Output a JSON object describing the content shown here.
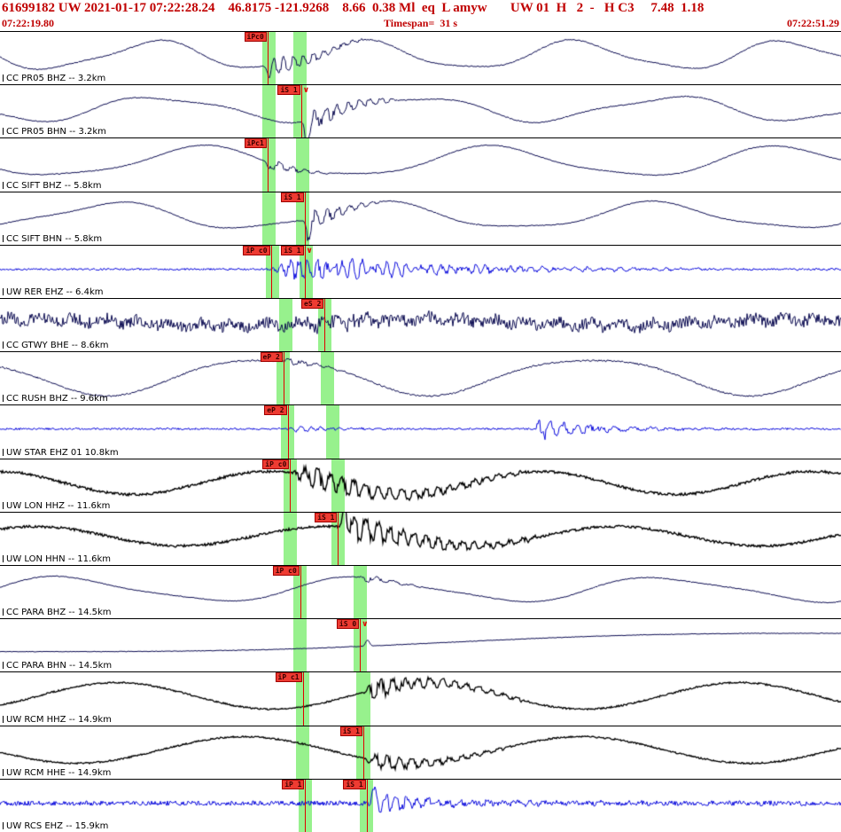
{
  "header": {
    "line1": "61699182 UW 2021-01-17 07:22:28.24    46.8175 -121.9268    8.66  0.38 Ml  eq  L amyw       UW 01  H   2  -   H C3     7.48  1.18",
    "start_time": "07:22:19.80",
    "timespan": "Timespan=  31 s",
    "end_time": "07:22:51.29",
    "text_color": "#c00000",
    "pick_band_color": "#7dee70",
    "pick_flag_color": "#ee3b32"
  },
  "traces": [
    {
      "label": "CC PR05 BHZ -- 3.2km",
      "color": "#0a0a50",
      "lw": 1,
      "seed": 11,
      "sines": [
        {
          "f": 4.0,
          "a": 15
        },
        {
          "f": 8.5,
          "a": 3
        }
      ],
      "noise": 0.6,
      "bursts": [
        {
          "s": 0.318,
          "e": 0.43,
          "a": 12,
          "f": 85
        }
      ],
      "spikes": [
        {
          "x": 0.32,
          "a": -12
        }
      ],
      "ramp": 0,
      "bands": [
        {
          "x": 0.312,
          "w": 0.016
        },
        {
          "x": 0.349,
          "w": 0.016
        }
      ],
      "picks": [
        {
          "label": "iPc0",
          "x": 0.318
        }
      ]
    },
    {
      "label": "CC PR05 BHN -- 3.2km",
      "color": "#0a0a50",
      "lw": 1,
      "seed": 22,
      "sines": [
        {
          "f": 3.3,
          "a": 13
        },
        {
          "f": 7.2,
          "a": 3
        }
      ],
      "noise": 0.6,
      "bursts": [
        {
          "s": 0.358,
          "e": 0.47,
          "a": 15,
          "f": 75
        }
      ],
      "spikes": [
        {
          "x": 0.364,
          "a": -26
        }
      ],
      "ramp": 0,
      "bands": [
        {
          "x": 0.312,
          "w": 0.016
        },
        {
          "x": 0.349,
          "w": 0.016
        }
      ],
      "picks": [
        {
          "label": "iS 1",
          "x": 0.358,
          "dir": "down"
        }
      ]
    },
    {
      "label": "CC SIFT BHZ -- 5.8km",
      "color": "#0a0a50",
      "lw": 1,
      "seed": 33,
      "sines": [
        {
          "f": 2.9,
          "a": 16
        },
        {
          "f": 6.1,
          "a": 3
        }
      ],
      "noise": 0.5,
      "bursts": [
        {
          "s": 0.318,
          "e": 0.39,
          "a": 7,
          "f": 65
        }
      ],
      "spikes": [
        {
          "x": 0.32,
          "a": -8
        }
      ],
      "ramp": 0,
      "bands": [
        {
          "x": 0.312,
          "w": 0.016
        },
        {
          "x": 0.352,
          "w": 0.016
        }
      ],
      "picks": [
        {
          "label": "iPc1",
          "x": 0.318
        }
      ]
    },
    {
      "label": "CC SIFT BHN -- 5.8km",
      "color": "#0a0a50",
      "lw": 1,
      "seed": 44,
      "sines": [
        {
          "f": 3.1,
          "a": 14
        },
        {
          "f": 6.6,
          "a": 3
        }
      ],
      "noise": 0.5,
      "bursts": [
        {
          "s": 0.362,
          "e": 0.45,
          "a": 13,
          "f": 75
        }
      ],
      "spikes": [
        {
          "x": 0.366,
          "a": -20
        }
      ],
      "ramp": 0,
      "bands": [
        {
          "x": 0.312,
          "w": 0.016
        },
        {
          "x": 0.352,
          "w": 0.016
        }
      ],
      "picks": [
        {
          "label": "iS 1",
          "x": 0.362
        }
      ]
    },
    {
      "label": "UW RER EHZ -- 6.4km",
      "color": "#0a0adc",
      "lw": 1,
      "seed": 55,
      "sines": [],
      "noise": 1.1,
      "bursts": [
        {
          "s": 0.322,
          "e": 0.62,
          "a": 13,
          "f": 95
        },
        {
          "s": 0.362,
          "e": 0.8,
          "a": 7,
          "f": 75
        },
        {
          "s": 0.62,
          "e": 1.0,
          "a": 1.8,
          "f": 55
        }
      ],
      "spikes": [],
      "ramp": 0,
      "bands": [
        {
          "x": 0.316,
          "w": 0.016
        },
        {
          "x": 0.356,
          "w": 0.016
        }
      ],
      "picks": [
        {
          "label": "iP c0",
          "x": 0.322
        },
        {
          "label": "iS 1",
          "x": 0.362,
          "dir": "down"
        }
      ]
    },
    {
      "label": "CC GTWY BHE -- 8.6km",
      "color": "#0a0a50",
      "lw": 1,
      "seed": 66,
      "sines": [
        {
          "f": 2.2,
          "a": 3.5
        },
        {
          "f": 26,
          "a": 3
        }
      ],
      "noise": 6.5,
      "bursts": [
        {
          "s": 0.36,
          "e": 0.55,
          "a": 6,
          "f": 55
        }
      ],
      "spikes": [],
      "ramp": 0,
      "bands": [
        {
          "x": 0.332,
          "w": 0.016
        },
        {
          "x": 0.378,
          "w": 0.016
        }
      ],
      "picks": [
        {
          "label": "eS 2",
          "x": 0.386
        }
      ]
    },
    {
      "label": "CC RUSH BHZ -- 9.6km",
      "color": "#0a0a50",
      "lw": 1,
      "seed": 77,
      "sines": [
        {
          "f": 2.6,
          "a": 20
        },
        {
          "f": 5.3,
          "a": 3
        }
      ],
      "noise": 0.9,
      "bursts": [
        {
          "s": 0.337,
          "e": 0.41,
          "a": 5,
          "f": 60
        }
      ],
      "spikes": [],
      "ramp": 0,
      "bands": [
        {
          "x": 0.329,
          "w": 0.016
        },
        {
          "x": 0.381,
          "w": 0.016
        }
      ],
      "picks": [
        {
          "label": "eP 2",
          "x": 0.337
        }
      ]
    },
    {
      "label": "UW STAR EHZ 01 10.8km",
      "color": "#0a0adc",
      "lw": 1,
      "seed": 88,
      "sines": [],
      "noise": 1.1,
      "bursts": [
        {
          "s": 0.342,
          "e": 0.44,
          "a": 4,
          "f": 85
        },
        {
          "s": 0.635,
          "e": 0.73,
          "a": 15,
          "f": 65
        },
        {
          "s": 0.7,
          "e": 0.9,
          "a": 3.5,
          "f": 45
        }
      ],
      "spikes": [],
      "ramp": 0,
      "bands": [
        {
          "x": 0.334,
          "w": 0.016
        },
        {
          "x": 0.388,
          "w": 0.016
        }
      ],
      "picks": [
        {
          "label": "eP 2",
          "x": 0.342
        }
      ]
    },
    {
      "label": "UW LON HHZ -- 11.6km",
      "color": "#000000",
      "lw": 1.4,
      "seed": 99,
      "sines": [
        {
          "f": 3.1,
          "a": 13
        }
      ],
      "noise": 1.4,
      "bursts": [
        {
          "s": 0.345,
          "e": 0.62,
          "a": 15,
          "f": 70
        }
      ],
      "spikes": [],
      "ramp": 0,
      "bands": [
        {
          "x": 0.337,
          "w": 0.016
        },
        {
          "x": 0.394,
          "w": 0.016
        }
      ],
      "picks": [
        {
          "label": "iP c0",
          "x": 0.345
        }
      ]
    },
    {
      "label": "UW LON HHN -- 11.6km",
      "color": "#000000",
      "lw": 1.4,
      "seed": 110,
      "sines": [
        {
          "f": 2.9,
          "a": 11
        }
      ],
      "noise": 1.4,
      "bursts": [
        {
          "s": 0.402,
          "e": 0.64,
          "a": 16,
          "f": 70
        }
      ],
      "spikes": [
        {
          "x": 0.41,
          "a": 24
        }
      ],
      "ramp": 0,
      "bands": [
        {
          "x": 0.337,
          "w": 0.016
        },
        {
          "x": 0.394,
          "w": 0.016
        }
      ],
      "picks": [
        {
          "label": "iS 1",
          "x": 0.402
        }
      ]
    },
    {
      "label": "CC PARA BHZ -- 14.5km",
      "color": "#0a0a50",
      "lw": 1,
      "seed": 121,
      "sines": [
        {
          "f": 2.8,
          "a": 13
        },
        {
          "f": 5.8,
          "a": 2.5
        }
      ],
      "noise": 0.5,
      "bursts": [
        {
          "s": 0.428,
          "e": 0.5,
          "a": 6,
          "f": 48
        }
      ],
      "spikes": [],
      "ramp": 0,
      "bands": [
        {
          "x": 0.349,
          "w": 0.016
        },
        {
          "x": 0.42,
          "w": 0.016
        }
      ],
      "picks": [
        {
          "label": "iP c0",
          "x": 0.357
        }
      ]
    },
    {
      "label": "CC PARA BHN -- 14.5km",
      "color": "#0a0a50",
      "lw": 1,
      "seed": 132,
      "sines": [
        {
          "f": 1.2,
          "a": 1.5
        }
      ],
      "noise": 0.35,
      "bursts": [],
      "spikes": [
        {
          "x": 0.437,
          "a": 7
        }
      ],
      "ramp": 13,
      "bands": [
        {
          "x": 0.349,
          "w": 0.016
        },
        {
          "x": 0.42,
          "w": 0.016
        }
      ],
      "picks": [
        {
          "label": "iS 0",
          "x": 0.428,
          "dir": "down"
        }
      ]
    },
    {
      "label": "UW RCM HHZ -- 14.9km",
      "color": "#000000",
      "lw": 1.3,
      "seed": 143,
      "sines": [
        {
          "f": 2.7,
          "a": 15
        }
      ],
      "noise": 0.9,
      "bursts": [
        {
          "s": 0.43,
          "e": 0.62,
          "a": 13,
          "f": 68
        }
      ],
      "spikes": [],
      "ramp": 0,
      "bands": [
        {
          "x": 0.352,
          "w": 0.016
        },
        {
          "x": 0.424,
          "w": 0.016
        }
      ],
      "picks": [
        {
          "label": "iP c1",
          "x": 0.36
        }
      ]
    },
    {
      "label": "UW RCM HHE -- 14.9km",
      "color": "#000000",
      "lw": 1.3,
      "seed": 154,
      "sines": [
        {
          "f": 2.5,
          "a": 15
        }
      ],
      "noise": 0.9,
      "bursts": [
        {
          "s": 0.433,
          "e": 0.6,
          "a": 11,
          "f": 68
        }
      ],
      "spikes": [],
      "ramp": 0,
      "bands": [
        {
          "x": 0.352,
          "w": 0.016
        },
        {
          "x": 0.424,
          "w": 0.016
        }
      ],
      "picks": [
        {
          "label": "iS 1",
          "x": 0.432
        }
      ]
    },
    {
      "label": "UW RCS EHZ -- 15.9km",
      "color": "#0a0adc",
      "lw": 1,
      "seed": 165,
      "sines": [],
      "noise": 2.6,
      "bursts": [
        {
          "s": 0.436,
          "e": 0.56,
          "a": 12,
          "f": 80
        },
        {
          "s": 0.5,
          "e": 1.0,
          "a": 2.5,
          "f": 60
        }
      ],
      "spikes": [
        {
          "x": 0.444,
          "a": 15
        }
      ],
      "ramp": 0,
      "bands": [
        {
          "x": 0.355,
          "w": 0.016
        },
        {
          "x": 0.428,
          "w": 0.016
        }
      ],
      "picks": [
        {
          "label": "iP 1",
          "x": 0.363
        },
        {
          "label": "iS 1",
          "x": 0.436
        }
      ]
    }
  ]
}
